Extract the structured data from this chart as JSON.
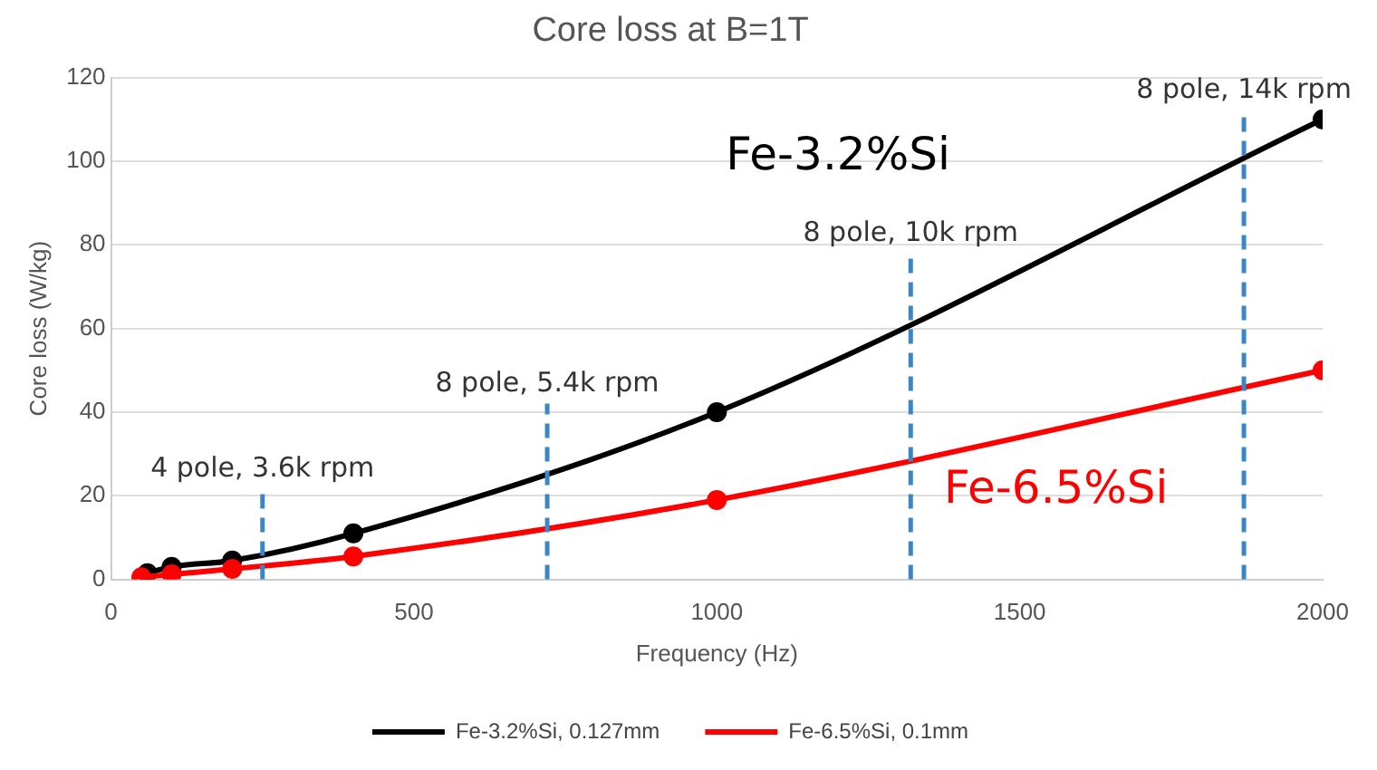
{
  "chart_data": {
    "type": "line",
    "title": "Core loss at B=1T",
    "xlabel": "Frequency (Hz)",
    "ylabel": "Core loss (W/kg)",
    "series": [
      {
        "name": "Fe-3.2%Si, 0.127mm",
        "color": "#000000",
        "x": [
          60,
          100,
          200,
          400,
          1000,
          2000
        ],
        "values": [
          1.5,
          3,
          4.5,
          11,
          40,
          110
        ]
      },
      {
        "name": "Fe-6.5%Si, 0.1mm",
        "color": "#ff0000",
        "x": [
          50,
          100,
          200,
          400,
          1000,
          2000
        ],
        "values": [
          0.5,
          1.2,
          2.5,
          5.5,
          19,
          50
        ]
      }
    ],
    "xlim": [
      0,
      2000
    ],
    "xticks": [
      0,
      500,
      1000,
      1500,
      2000
    ],
    "ylim": [
      0,
      120
    ],
    "yticks": [
      0,
      20,
      40,
      60,
      80,
      100,
      120
    ],
    "grid": "y",
    "legend": "bottom",
    "marker": "circle",
    "line_style": "solid",
    "ref_lines": [
      {
        "axis": "x",
        "value": 250,
        "label": "4 pole, 3.6k rpm",
        "color": "#3a87c8",
        "line_style": "dashed"
      },
      {
        "axis": "x",
        "value": 720,
        "label": "8 pole, 5.4k rpm",
        "color": "#3a87c8",
        "line_style": "dashed"
      },
      {
        "axis": "x",
        "value": 1320,
        "label": "8 pole, 10k rpm",
        "color": "#3a87c8",
        "line_style": "dashed"
      },
      {
        "axis": "x",
        "value": 1870,
        "label": "8 pole, 14k rpm",
        "color": "#3a87c8",
        "line_style": "dashed"
      }
    ],
    "annotations": [
      "Fe-3.2%Si",
      "Fe-6.5%Si"
    ]
  }
}
